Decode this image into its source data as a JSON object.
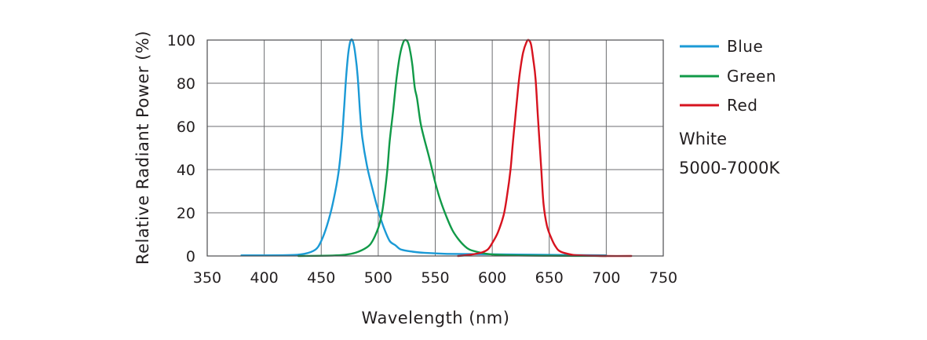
{
  "chart_data": {
    "type": "line",
    "title": "",
    "xlabel": "Wavelength (nm)",
    "ylabel": "Relative Radiant Power (%)",
    "xlim": [
      350,
      750
    ],
    "ylim": [
      0,
      100
    ],
    "x_ticks": [
      "350",
      "400",
      "450",
      "500",
      "550",
      "600",
      "650",
      "700",
      "750"
    ],
    "y_ticks": [
      "0",
      "20",
      "40",
      "60",
      "80",
      "100"
    ],
    "grid": true,
    "legend_position": "right",
    "series": [
      {
        "name": "Blue",
        "color": "#1b9ad6",
        "points": [
          [
            380,
            0.3
          ],
          [
            420,
            0.4
          ],
          [
            435,
            1
          ],
          [
            445,
            3
          ],
          [
            450,
            7
          ],
          [
            455,
            14
          ],
          [
            460,
            24
          ],
          [
            465,
            38
          ],
          [
            468,
            53
          ],
          [
            470,
            68
          ],
          [
            472,
            84
          ],
          [
            474,
            95
          ],
          [
            476,
            100
          ],
          [
            478,
            99
          ],
          [
            480,
            93
          ],
          [
            482,
            83
          ],
          [
            484,
            67
          ],
          [
            486,
            55
          ],
          [
            490,
            42
          ],
          [
            495,
            31
          ],
          [
            500,
            21
          ],
          [
            505,
            13
          ],
          [
            510,
            7
          ],
          [
            515,
            5
          ],
          [
            520,
            3
          ],
          [
            530,
            2
          ],
          [
            540,
            1.5
          ],
          [
            560,
            1
          ],
          [
            600,
            0.8
          ],
          [
            650,
            0.5
          ],
          [
            700,
            0.3
          ]
        ]
      },
      {
        "name": "Green",
        "color": "#119a48",
        "points": [
          [
            430,
            0
          ],
          [
            460,
            0.2
          ],
          [
            470,
            0.5
          ],
          [
            480,
            1.5
          ],
          [
            490,
            4
          ],
          [
            495,
            7
          ],
          [
            500,
            13
          ],
          [
            503,
            19
          ],
          [
            505,
            26
          ],
          [
            508,
            40
          ],
          [
            510,
            53
          ],
          [
            513,
            67
          ],
          [
            516,
            82
          ],
          [
            519,
            93
          ],
          [
            522,
            99
          ],
          [
            524,
            100
          ],
          [
            526,
            99
          ],
          [
            528,
            95
          ],
          [
            530,
            88
          ],
          [
            532,
            78
          ],
          [
            534,
            73
          ],
          [
            537,
            62
          ],
          [
            540,
            55
          ],
          [
            545,
            45
          ],
          [
            550,
            34
          ],
          [
            555,
            25
          ],
          [
            560,
            18
          ],
          [
            565,
            12
          ],
          [
            570,
            8
          ],
          [
            575,
            5
          ],
          [
            580,
            3
          ],
          [
            590,
            1.5
          ],
          [
            600,
            0.7
          ],
          [
            620,
            0.3
          ],
          [
            650,
            0.1
          ],
          [
            700,
            0
          ]
        ]
      },
      {
        "name": "Red",
        "color": "#d7131f",
        "points": [
          [
            570,
            0
          ],
          [
            580,
            0.5
          ],
          [
            590,
            1.5
          ],
          [
            596,
            3
          ],
          [
            600,
            6
          ],
          [
            605,
            11
          ],
          [
            610,
            19
          ],
          [
            613,
            28
          ],
          [
            616,
            40
          ],
          [
            618,
            52
          ],
          [
            620,
            63
          ],
          [
            622,
            74
          ],
          [
            624,
            84
          ],
          [
            627,
            94
          ],
          [
            630,
            99
          ],
          [
            632,
            100
          ],
          [
            634,
            98
          ],
          [
            636,
            91
          ],
          [
            638,
            82
          ],
          [
            640,
            65
          ],
          [
            643,
            40
          ],
          [
            645,
            24
          ],
          [
            648,
            14
          ],
          [
            652,
            8
          ],
          [
            656,
            4
          ],
          [
            660,
            2
          ],
          [
            670,
            0.6
          ],
          [
            680,
            0.2
          ],
          [
            700,
            0
          ],
          [
            722,
            0
          ]
        ]
      }
    ],
    "annotations": [
      "White",
      "5000-7000K"
    ]
  }
}
